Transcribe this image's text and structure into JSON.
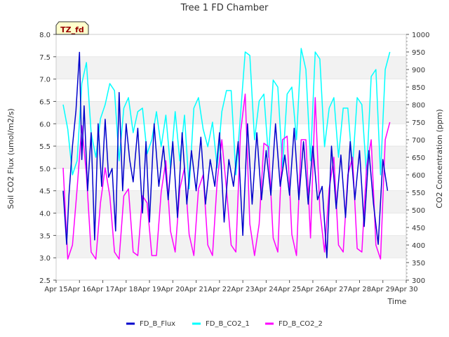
{
  "chart_data": {
    "type": "line",
    "title": "Tree 1 FD Chamber",
    "xlabel": "Time",
    "ylabel": "Soil CO2 Flux (umol/m2/s)",
    "y2label": "CO2 Concentration (ppm)",
    "x_ticks": [
      "Apr 15",
      "Apr 16",
      "Apr 17",
      "Apr 18",
      "Apr 19",
      "Apr 20",
      "Apr 21",
      "Apr 22",
      "Apr 23",
      "Apr 24",
      "Apr 25",
      "Apr 26",
      "Apr 27",
      "Apr 28",
      "Apr 29",
      "Apr 30"
    ],
    "xlim": [
      15,
      30
    ],
    "ylim": [
      2.5,
      8.0
    ],
    "y_ticks": [
      "2.5",
      "3.0",
      "3.5",
      "4.0",
      "4.5",
      "5.0",
      "5.5",
      "6.0",
      "6.5",
      "7.0",
      "7.5",
      "8.0"
    ],
    "y2lim": [
      300,
      1000
    ],
    "y2_ticks": [
      "300",
      "350",
      "400",
      "450",
      "500",
      "550",
      "600",
      "650",
      "700",
      "750",
      "800",
      "850",
      "900",
      "950",
      "1000"
    ],
    "grid": "horizontal bands",
    "legend_position": "bottom",
    "annotation": "TZ_fd",
    "series": [
      {
        "name": "FD_B_Flux",
        "color": "#0000cc",
        "axis": "left",
        "x": [
          15.3,
          15.45,
          15.55,
          15.7,
          15.85,
          16.0,
          16.1,
          16.2,
          16.35,
          16.5,
          16.65,
          16.8,
          16.95,
          17.1,
          17.25,
          17.4,
          17.55,
          17.7,
          17.85,
          18.0,
          18.15,
          18.3,
          18.5,
          18.7,
          18.85,
          19.0,
          19.2,
          19.4,
          19.6,
          19.8,
          20.0,
          20.2,
          20.4,
          20.6,
          20.8,
          21.0,
          21.2,
          21.4,
          21.6,
          21.8,
          22.0,
          22.2,
          22.4,
          22.6,
          22.8,
          23.0,
          23.2,
          23.4,
          23.6,
          23.8,
          24.0,
          24.2,
          24.4,
          24.6,
          24.8,
          25.0,
          25.2,
          25.4,
          25.6,
          25.8,
          26.0,
          26.2,
          26.4,
          26.6,
          26.8,
          27.0,
          27.2,
          27.4,
          27.6,
          27.8,
          28.0,
          28.2,
          28.4,
          28.6,
          28.8,
          29.0,
          29.2
        ],
        "values": [
          4.5,
          3.3,
          4.4,
          5.5,
          6.3,
          7.6,
          5.2,
          6.4,
          4.5,
          5.8,
          3.4,
          6.0,
          4.6,
          6.1,
          4.8,
          5.0,
          3.6,
          6.7,
          4.5,
          6.0,
          5.2,
          4.7,
          5.9,
          4.0,
          5.6,
          3.8,
          6.0,
          4.6,
          5.5,
          4.3,
          5.6,
          3.9,
          5.8,
          4.2,
          5.4,
          4.5,
          5.7,
          4.2,
          5.2,
          4.6,
          5.8,
          3.8,
          5.2,
          4.6,
          5.6,
          3.5,
          6.0,
          4.2,
          5.8,
          4.3,
          5.4,
          4.4,
          6.0,
          4.6,
          5.3,
          4.4,
          5.9,
          4.3,
          5.6,
          4.2,
          5.5,
          4.3,
          4.6,
          3.0,
          5.5,
          4.1,
          5.3,
          3.9,
          5.6,
          4.3,
          5.4,
          3.7,
          5.4,
          4.2,
          3.3,
          5.2,
          4.5
        ]
      },
      {
        "name": "FD_B_CO2_1",
        "color": "#00ffff",
        "axis": "right",
        "x": [
          15.3,
          15.5,
          15.7,
          15.9,
          16.1,
          16.3,
          16.5,
          16.7,
          16.9,
          17.1,
          17.3,
          17.5,
          17.7,
          17.9,
          18.1,
          18.3,
          18.5,
          18.7,
          18.9,
          19.1,
          19.3,
          19.5,
          19.7,
          19.9,
          20.1,
          20.3,
          20.5,
          20.7,
          20.9,
          21.1,
          21.3,
          21.5,
          21.7,
          21.9,
          22.1,
          22.3,
          22.5,
          22.7,
          22.9,
          23.1,
          23.3,
          23.5,
          23.7,
          23.9,
          24.1,
          24.3,
          24.5,
          24.7,
          24.9,
          25.1,
          25.3,
          25.5,
          25.7,
          25.9,
          26.1,
          26.3,
          26.5,
          26.7,
          26.9,
          27.1,
          27.3,
          27.5,
          27.7,
          27.9,
          28.1,
          28.3,
          28.5,
          28.7,
          28.9,
          29.1,
          29.3
        ],
        "values": [
          800,
          730,
          600,
          640,
          860,
          920,
          720,
          650,
          760,
          800,
          860,
          840,
          640,
          790,
          820,
          720,
          780,
          790,
          660,
          700,
          780,
          680,
          770,
          620,
          780,
          640,
          770,
          560,
          790,
          820,
          730,
          680,
          750,
          620,
          780,
          840,
          840,
          600,
          770,
          950,
          940,
          700,
          810,
          830,
          650,
          870,
          850,
          620,
          830,
          850,
          700,
          960,
          900,
          640,
          950,
          930,
          680,
          790,
          820,
          650,
          790,
          790,
          620,
          820,
          800,
          600,
          880,
          900,
          600,
          900,
          950
        ]
      },
      {
        "name": "FD_B_CO2_2",
        "color": "#ff00ff",
        "axis": "right",
        "x": [
          15.3,
          15.5,
          15.7,
          15.9,
          16.1,
          16.3,
          16.5,
          16.7,
          16.9,
          17.1,
          17.3,
          17.5,
          17.7,
          17.9,
          18.1,
          18.3,
          18.5,
          18.7,
          18.9,
          19.1,
          19.3,
          19.5,
          19.7,
          19.9,
          20.1,
          20.3,
          20.5,
          20.7,
          20.9,
          21.1,
          21.3,
          21.5,
          21.7,
          21.9,
          22.1,
          22.3,
          22.5,
          22.7,
          22.9,
          23.1,
          23.3,
          23.5,
          23.7,
          23.9,
          24.1,
          24.3,
          24.5,
          24.7,
          24.9,
          25.1,
          25.3,
          25.5,
          25.7,
          25.9,
          26.1,
          26.3,
          26.5,
          26.7,
          26.9,
          27.1,
          27.3,
          27.5,
          27.7,
          27.9,
          28.1,
          28.3,
          28.5,
          28.7,
          28.9,
          29.1,
          29.3
        ],
        "values": [
          620,
          360,
          400,
          560,
          740,
          600,
          380,
          360,
          520,
          620,
          540,
          380,
          360,
          540,
          560,
          380,
          370,
          540,
          520,
          370,
          370,
          550,
          640,
          440,
          380,
          560,
          620,
          430,
          370,
          560,
          600,
          400,
          370,
          580,
          700,
          560,
          400,
          380,
          720,
          830,
          460,
          370,
          460,
          690,
          680,
          420,
          380,
          700,
          710,
          430,
          370,
          700,
          700,
          420,
          820,
          500,
          380,
          560,
          650,
          400,
          380,
          600,
          650,
          390,
          380,
          620,
          700,
          400,
          360,
          700,
          750
        ]
      }
    ]
  }
}
